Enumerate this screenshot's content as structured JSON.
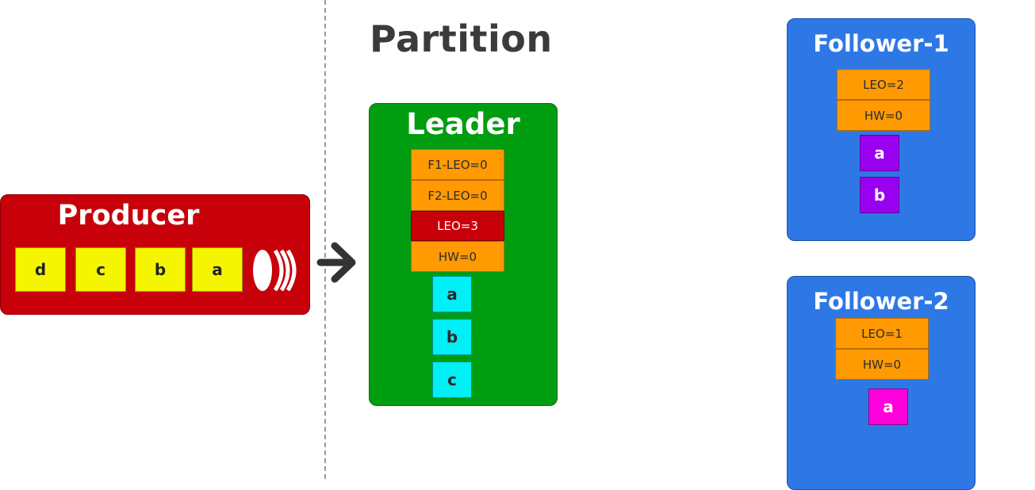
{
  "partition": {
    "title": "Partition"
  },
  "producer": {
    "title": "Producer",
    "messages": [
      "d",
      "c",
      "b",
      "a"
    ]
  },
  "leader": {
    "title": "Leader",
    "f1_leo": "F1-LEO=0",
    "f2_leo": "F2-LEO=0",
    "leo": "LEO=3",
    "hw": "HW=0",
    "log": [
      "a",
      "b",
      "c"
    ]
  },
  "follower1": {
    "title": "Follower-1",
    "leo": "LEO=2",
    "hw": "HW=0",
    "log": [
      "a",
      "b"
    ]
  },
  "follower2": {
    "title": "Follower-2",
    "leo": "LEO=1",
    "hw": "HW=0",
    "log": [
      "a"
    ]
  },
  "colors": {
    "producer": "#c8000a",
    "message": "#f5f500",
    "leader": "#009d11",
    "follower": "#2e78e6",
    "offset_cell": "#ff9a03",
    "leader_leo_cell": "#c8000a",
    "leader_log": "#00f0f5",
    "follower1_log": "#9a00f0",
    "follower2_log": "#ff00dc"
  }
}
